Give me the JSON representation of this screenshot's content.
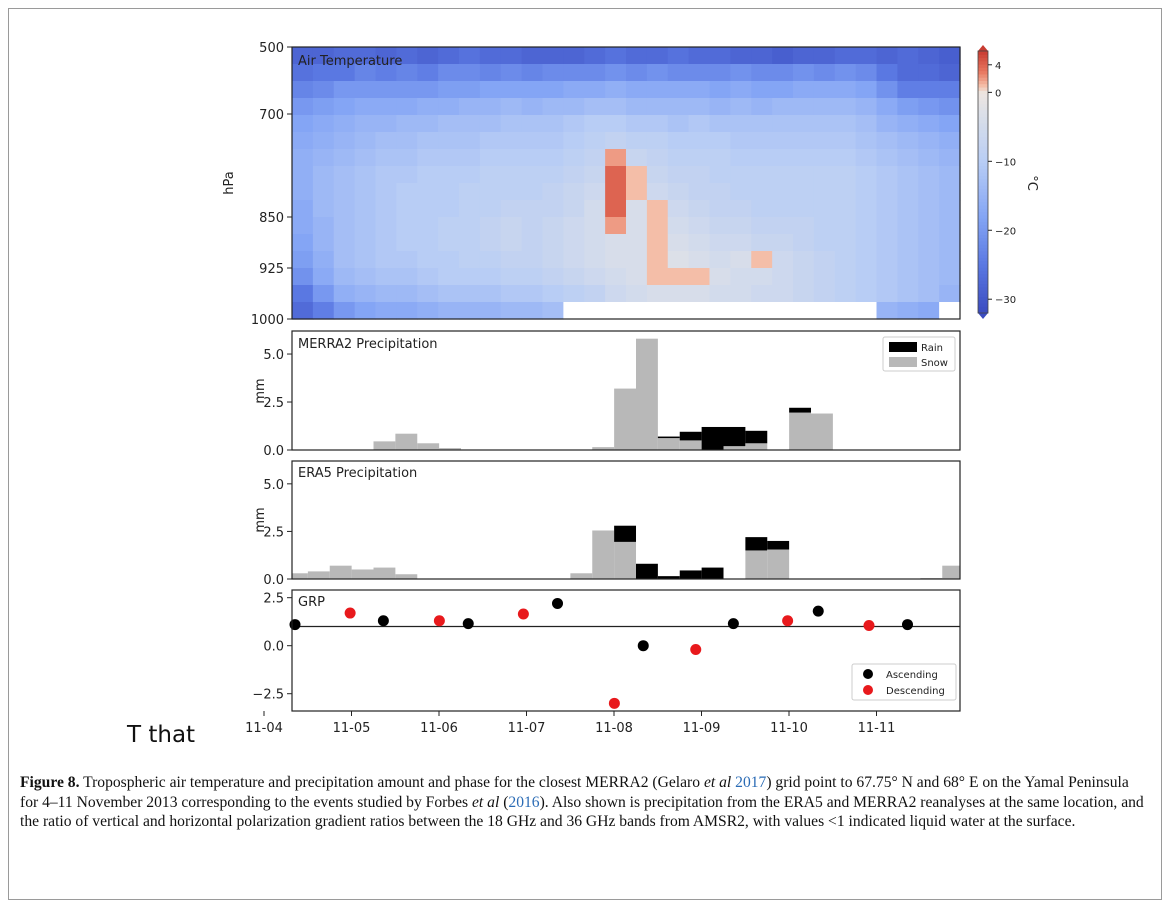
{
  "figure": {
    "side_note": "T that",
    "caption": {
      "label": "Figure 8.",
      "segments": [
        {
          "t": " Tropospheric air temperature and precipitation amount and phase for the closest MERRA2 (Gelaro "
        },
        {
          "t": "et al",
          "i": true
        },
        {
          "t": " "
        },
        {
          "t": "2017",
          "c": true
        },
        {
          "t": ") grid point to 67.75° N and 68° E on the Yamal Peninsula for 4–11 November 2013 corresponding to the events studied by Forbes "
        },
        {
          "t": "et al",
          "i": true
        },
        {
          "t": " ("
        },
        {
          "t": "2016",
          "c": true
        },
        {
          "t": "). Also shown is precipitation from the ERA5 and MERRA2 reanalyses at the same location, and the ratio of vertical and horizontal polarization gradient ratios between the 18 GHz and 36 GHz bands from AMSR2, with values <1 indicated liquid water at the surface."
        }
      ]
    },
    "colors": {
      "frame": "#9a9a9a",
      "rain": "#000000",
      "snow": "#b8b8b8",
      "ascending": "#000000",
      "descending": "#e8191c",
      "cite": "#2a6bb5"
    }
  },
  "chart_data": [
    {
      "type": "heatmap",
      "title": "Air Temperature",
      "ylabel": "hPa",
      "yticks": [
        "500",
        "700",
        "850",
        "925",
        "1000"
      ],
      "ytick_values": [
        500,
        700,
        850,
        925,
        1000
      ],
      "colorbar": {
        "label": "°C",
        "ticks": [
          "4",
          "0",
          "−10",
          "−20",
          "−30"
        ],
        "tick_values": [
          4,
          0,
          -10,
          -20,
          -30
        ],
        "vmin": -32,
        "vmax": 6
      },
      "x_unit": "days since 11-04 00:00",
      "n_times": 32,
      "levels_hPa": [
        500,
        550,
        600,
        650,
        700,
        750,
        775,
        800,
        825,
        850,
        875,
        900,
        925,
        950,
        975,
        1000
      ],
      "values_degC": [
        [
          -28,
          -28,
          -27,
          -27,
          -28,
          -27,
          -28,
          -27,
          -26,
          -27,
          -27,
          -28,
          -28,
          -28,
          -27,
          -26,
          -27,
          -27,
          -26,
          -27,
          -27,
          -28,
          -28,
          -29,
          -28,
          -28,
          -27,
          -27,
          -28,
          -27,
          -28,
          -29
        ],
        [
          -26,
          -25,
          -25,
          -23,
          -24,
          -23,
          -24,
          -22,
          -22,
          -23,
          -22,
          -23,
          -22,
          -22,
          -22,
          -21,
          -22,
          -21,
          -22,
          -22,
          -22,
          -21,
          -22,
          -22,
          -21,
          -22,
          -21,
          -22,
          -25,
          -27,
          -27,
          -28
        ],
        [
          -23,
          -22,
          -20,
          -20,
          -20,
          -20,
          -20,
          -19,
          -19,
          -18,
          -18,
          -18,
          -18,
          -17,
          -17,
          -16,
          -17,
          -17,
          -17,
          -17,
          -18,
          -17,
          -18,
          -18,
          -17,
          -17,
          -17,
          -18,
          -21,
          -24,
          -24,
          -24
        ],
        [
          -20,
          -19,
          -18,
          -17,
          -17,
          -17,
          -16,
          -16,
          -15,
          -15,
          -14,
          -15,
          -14,
          -14,
          -13,
          -13,
          -14,
          -14,
          -14,
          -14,
          -15,
          -14,
          -15,
          -14,
          -14,
          -14,
          -14,
          -15,
          -17,
          -19,
          -20,
          -21
        ],
        [
          -18,
          -17,
          -16,
          -15,
          -15,
          -14,
          -14,
          -13,
          -13,
          -13,
          -12,
          -12,
          -12,
          -11,
          -10,
          -10,
          -11,
          -11,
          -12,
          -11,
          -12,
          -12,
          -12,
          -12,
          -12,
          -12,
          -12,
          -13,
          -15,
          -16,
          -17,
          -18
        ],
        [
          -17,
          -16,
          -15,
          -14,
          -13,
          -13,
          -12,
          -12,
          -12,
          -11,
          -11,
          -11,
          -11,
          -10,
          -9,
          -8,
          -9,
          -9,
          -10,
          -10,
          -10,
          -11,
          -11,
          -11,
          -11,
          -11,
          -11,
          -12,
          -13,
          -14,
          -15,
          -16
        ],
        [
          -16,
          -15,
          -14,
          -13,
          -12,
          -12,
          -11,
          -11,
          -11,
          -10,
          -10,
          -10,
          -10,
          -9,
          -8,
          2,
          -7,
          -8,
          -9,
          -9,
          -9,
          -10,
          -10,
          -10,
          -10,
          -10,
          -10,
          -11,
          -12,
          -13,
          -14,
          -15
        ],
        [
          -16,
          -14,
          -13,
          -12,
          -11,
          -11,
          -10,
          -10,
          -10,
          -9,
          -9,
          -9,
          -9,
          -8,
          -7,
          4,
          1,
          -7,
          -8,
          -8,
          -9,
          -9,
          -9,
          -9,
          -9,
          -9,
          -9,
          -10,
          -11,
          -12,
          -13,
          -14
        ],
        [
          -16,
          -14,
          -13,
          -12,
          -11,
          -10,
          -10,
          -10,
          -9,
          -9,
          -9,
          -9,
          -8,
          -7,
          -6,
          4,
          1,
          -6,
          -7,
          -8,
          -8,
          -9,
          -9,
          -9,
          -9,
          -9,
          -9,
          -10,
          -11,
          -12,
          -13,
          -14
        ],
        [
          -17,
          -14,
          -13,
          -12,
          -11,
          -10,
          -10,
          -10,
          -9,
          -9,
          -8,
          -8,
          -8,
          -7,
          -5,
          4,
          -4,
          1,
          -6,
          -7,
          -8,
          -8,
          -9,
          -9,
          -9,
          -9,
          -9,
          -10,
          -11,
          -12,
          -13,
          -14
        ],
        [
          -17,
          -15,
          -13,
          -12,
          -11,
          -10,
          -10,
          -9,
          -9,
          -8,
          -7,
          -8,
          -7,
          -6,
          -5,
          2,
          -4,
          1,
          -5,
          -6,
          -7,
          -7,
          -8,
          -8,
          -8,
          -9,
          -9,
          -10,
          -11,
          -12,
          -13,
          -14
        ],
        [
          -18,
          -15,
          -13,
          -12,
          -11,
          -10,
          -10,
          -9,
          -9,
          -8,
          -7,
          -8,
          -7,
          -6,
          -5,
          -4,
          -4,
          1,
          -4,
          -5,
          -6,
          -6,
          -7,
          -7,
          -8,
          -9,
          -9,
          -10,
          -11,
          -12,
          -13,
          -14
        ],
        [
          -19,
          -16,
          -13,
          -12,
          -11,
          -11,
          -10,
          -10,
          -9,
          -9,
          -8,
          -8,
          -7,
          -6,
          -5,
          -4,
          -4,
          1,
          -3,
          -4,
          -5,
          -4,
          1,
          -6,
          -7,
          -8,
          -9,
          -10,
          -11,
          -12,
          -13,
          -14
        ],
        [
          -21,
          -17,
          -14,
          -13,
          -12,
          -12,
          -11,
          -10,
          -10,
          -10,
          -9,
          -9,
          -8,
          -7,
          -6,
          -5,
          -4,
          1,
          1,
          1,
          -4,
          -5,
          -5,
          -6,
          -7,
          -8,
          -9,
          -10,
          -11,
          -12,
          -13,
          -14
        ],
        [
          -25,
          -20,
          -16,
          -15,
          -14,
          -14,
          -13,
          -12,
          -12,
          -12,
          -11,
          -11,
          -10,
          -9,
          -8,
          -6,
          -5,
          -4,
          -4,
          -4,
          -5,
          -5,
          -6,
          -6,
          -7,
          -8,
          -9,
          -10,
          -11,
          -12,
          -13,
          -15
        ],
        [
          -27,
          -24,
          -20,
          -18,
          -17,
          -17,
          -16,
          -15,
          -15,
          -15,
          -14,
          -14,
          -13,
          null,
          null,
          null,
          null,
          null,
          null,
          null,
          null,
          null,
          null,
          null,
          null,
          null,
          null,
          null,
          -15,
          -16,
          -17,
          null
        ]
      ]
    },
    {
      "type": "bar",
      "title": "MERRA2 Precipitation",
      "ylabel": "mm",
      "ylim": [
        0,
        6.2
      ],
      "yticks": [
        "0.0",
        "2.5",
        "5.0"
      ],
      "ytick_values": [
        0,
        2.5,
        5.0
      ],
      "legend": {
        "position": "top-right",
        "entries": [
          "Rain",
          "Snow"
        ]
      },
      "x_unit": "days since 11-04 00:00",
      "bin_days": 0.25,
      "series": [
        {
          "name": "Snow",
          "values": [
            0,
            0,
            0,
            0,
            0.45,
            0.85,
            0.35,
            0.1,
            0,
            0,
            0,
            0,
            0,
            0,
            0.15,
            3.2,
            5.8,
            0.62,
            0.5,
            0,
            0.2,
            0.35,
            0,
            1.95,
            1.9,
            0,
            0,
            0,
            0,
            0,
            0,
            0,
            0,
            0.2,
            0,
            0,
            0,
            0.15,
            0.85
          ]
        },
        {
          "name": "Rain",
          "values": [
            0,
            0,
            0,
            0,
            0,
            0,
            0,
            0,
            0,
            0,
            0,
            0,
            0,
            0,
            0,
            0,
            0,
            0.08,
            0.45,
            1.2,
            1.0,
            0.65,
            0,
            0.25,
            0,
            0,
            0,
            0,
            0,
            0,
            0,
            0,
            0,
            0,
            0,
            0,
            0,
            0,
            0
          ]
        }
      ]
    },
    {
      "type": "bar",
      "title": "ERA5 Precipitation",
      "ylabel": "mm",
      "ylim": [
        0,
        6.2
      ],
      "yticks": [
        "0.0",
        "2.5",
        "5.0"
      ],
      "ytick_values": [
        0,
        2.5,
        5.0
      ],
      "x_unit": "days since 11-04 00:00",
      "bin_days": 0.25,
      "series": [
        {
          "name": "Snow",
          "values": [
            0.3,
            0.4,
            0.7,
            0.5,
            0.6,
            0.25,
            0,
            0,
            0,
            0,
            0,
            0,
            0,
            0.3,
            2.55,
            1.95,
            0,
            0,
            0,
            0,
            0,
            1.5,
            1.55,
            0,
            0,
            0,
            0,
            0,
            0,
            0.05,
            0.7,
            0.4,
            0.1,
            0,
            0,
            0,
            0,
            0.85
          ]
        },
        {
          "name": "Rain",
          "values": [
            0,
            0,
            0,
            0,
            0,
            0,
            0,
            0,
            0,
            0,
            0,
            0,
            0,
            0,
            0,
            0.85,
            0.8,
            0.15,
            0.45,
            0.6,
            0,
            0.7,
            0.45,
            0,
            0,
            0,
            0,
            0,
            0,
            0,
            0,
            0,
            0,
            0,
            0,
            0,
            0,
            0
          ]
        }
      ]
    },
    {
      "type": "scatter",
      "title": "GRP",
      "ylim": [
        -3.4,
        2.9
      ],
      "yticks": [
        "2.5",
        "0.0",
        "−2.5"
      ],
      "ytick_values": [
        2.5,
        0.0,
        -2.5
      ],
      "reference_line": 1.0,
      "x_unit": "days since 11-04 00:00",
      "xticks": [
        "11-04",
        "11-05",
        "11-06",
        "11-07",
        "11-08",
        "11-09",
        "11-10",
        "11-11"
      ],
      "xtick_values": [
        0,
        1,
        2,
        3,
        4,
        5,
        6,
        7
      ],
      "legend": {
        "position": "bottom-right",
        "entries": [
          "Ascending",
          "Descending"
        ]
      },
      "series": [
        {
          "name": "Ascending",
          "x": [
            0.32,
            1.33,
            2.3,
            3.32,
            4.3,
            5.33,
            6.3,
            7.32
          ],
          "y": [
            1.1,
            1.3,
            1.15,
            2.2,
            0.0,
            1.15,
            1.8,
            1.1
          ]
        },
        {
          "name": "Descending",
          "x": [
            0.95,
            1.97,
            2.93,
            3.97,
            4.9,
            5.95,
            6.88
          ],
          "y": [
            1.7,
            1.3,
            1.65,
            -3.0,
            -0.2,
            1.3,
            1.05
          ]
        }
      ]
    }
  ]
}
